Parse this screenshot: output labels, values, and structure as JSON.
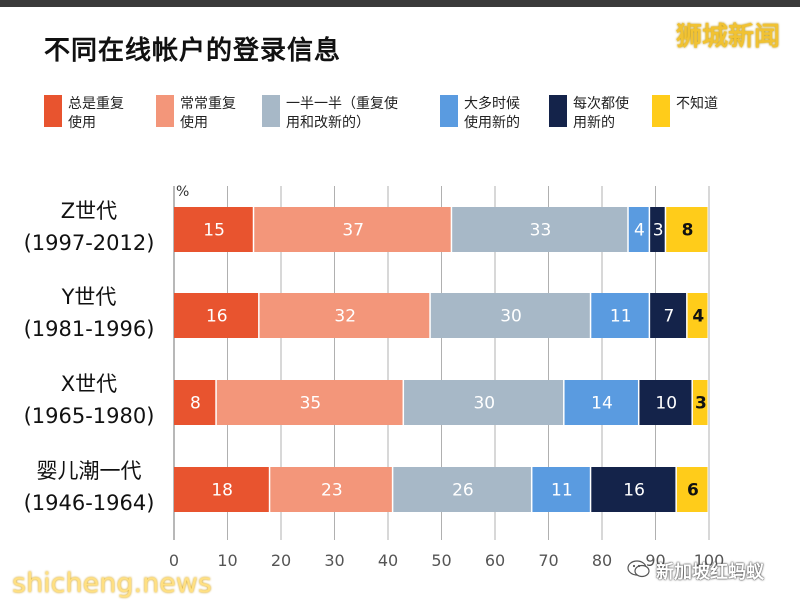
{
  "title": "不同在线帐户的登录信息",
  "brand": "狮城新闻",
  "watermark_left": "shicheng.news",
  "watermark_right": "新加坡红蚂蚁",
  "legend": [
    {
      "label": "总是重复\n使用",
      "color": "#e8542f"
    },
    {
      "label": "常常重复\n使用",
      "color": "#f3967a"
    },
    {
      "label": "一半一半（重复使\n用和改新的）",
      "color": "#a7b8c7"
    },
    {
      "label": "大多时候\n使用新的",
      "color": "#5a9be0"
    },
    {
      "label": "每次都使\n用新的",
      "color": "#14234a"
    },
    {
      "label": "不知道",
      "color": "#ffcc1a"
    }
  ],
  "chart_data": {
    "type": "bar",
    "orientation": "horizontal",
    "stacked": true,
    "unit_label": "%",
    "categories": [
      {
        "line1": "Z世代",
        "line2": "(1997-2012)"
      },
      {
        "line1": "Y世代",
        "line2": "(1981-1996)"
      },
      {
        "line1": "X世代",
        "line2": "(1965-1980)"
      },
      {
        "line1": "婴儿潮一代",
        "line2": "(1946-1964)"
      }
    ],
    "series": [
      {
        "name": "总是重复使用",
        "values": [
          15,
          16,
          8,
          18
        ]
      },
      {
        "name": "常常重复使用",
        "values": [
          37,
          32,
          35,
          23
        ]
      },
      {
        "name": "一半一半（重复使用和改新的）",
        "values": [
          33,
          30,
          30,
          26
        ]
      },
      {
        "name": "大多时候使用新的",
        "values": [
          4,
          11,
          14,
          11
        ]
      },
      {
        "name": "每次都使用新的",
        "values": [
          3,
          7,
          10,
          16
        ]
      },
      {
        "name": "不知道",
        "values": [
          8,
          4,
          3,
          6
        ]
      }
    ],
    "x_ticks": [
      0,
      10,
      20,
      30,
      40,
      50,
      60,
      70,
      80,
      90,
      100
    ],
    "xlim": [
      0,
      100
    ],
    "grid": true,
    "legend_position": "top"
  }
}
